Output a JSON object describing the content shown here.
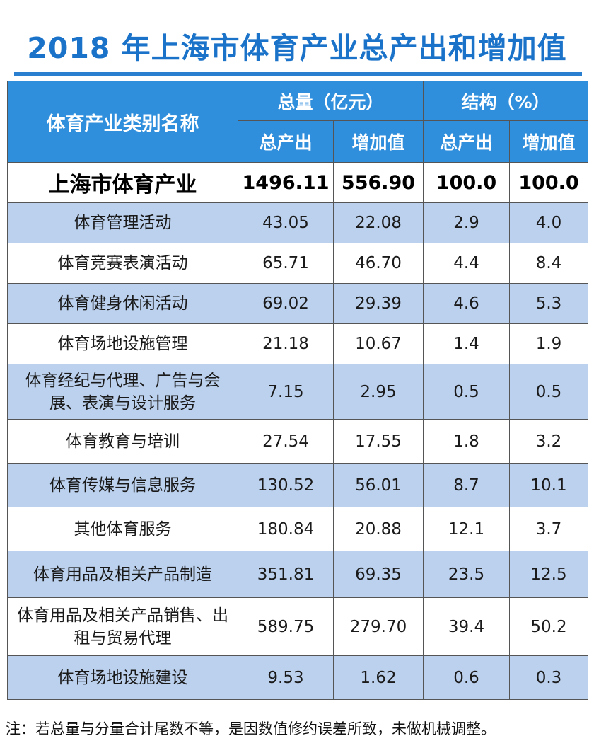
{
  "title": "2018 年上海市体育产业总产出和增加值",
  "header": {
    "category_name": "体育产业类别名称",
    "total_group": "总量（亿元）",
    "structure_group": "结构（%）",
    "sub": [
      "总产出",
      "增加值",
      "总产出",
      "增加值"
    ]
  },
  "total_row": {
    "name": "上海市体育产业",
    "output": "1496.11",
    "added_value": "556.90",
    "output_pct": "100.0",
    "added_pct": "100.0"
  },
  "rows": [
    {
      "name": "体育管理活动",
      "output": "43.05",
      "added_value": "22.08",
      "output_pct": "2.9",
      "added_pct": "4.0"
    },
    {
      "name": "体育竞赛表演活动",
      "output": "65.71",
      "added_value": "46.70",
      "output_pct": "4.4",
      "added_pct": "8.4"
    },
    {
      "name": "体育健身休闲活动",
      "output": "69.02",
      "added_value": "29.39",
      "output_pct": "4.6",
      "added_pct": "5.3"
    },
    {
      "name": "体育场地设施管理",
      "output": "21.18",
      "added_value": "10.67",
      "output_pct": "1.4",
      "added_pct": "1.9"
    },
    {
      "name": "体育经纪与代理、广告与会展、表演与设计服务",
      "output": "7.15",
      "added_value": "2.95",
      "output_pct": "0.5",
      "added_pct": "0.5"
    },
    {
      "name": "体育教育与培训",
      "output": "27.54",
      "added_value": "17.55",
      "output_pct": "1.8",
      "added_pct": "3.2"
    },
    {
      "name": "体育传媒与信息服务",
      "output": "130.52",
      "added_value": "56.01",
      "output_pct": "8.7",
      "added_pct": "10.1"
    },
    {
      "name": "其他体育服务",
      "output": "180.84",
      "added_value": "20.88",
      "output_pct": "12.1",
      "added_pct": "3.7"
    },
    {
      "name": "体育用品及相关产品制造",
      "output": "351.81",
      "added_value": "69.35",
      "output_pct": "23.5",
      "added_pct": "12.5"
    },
    {
      "name": "体育用品及相关产品销售、出租与贸易代理",
      "output": "589.75",
      "added_value": "279.70",
      "output_pct": "39.4",
      "added_pct": "50.2"
    },
    {
      "name": "体育场地设施建设",
      "output": "9.53",
      "added_value": "1.62",
      "output_pct": "0.6",
      "added_pct": "0.3"
    }
  ],
  "note": "注：若总量与分量合计尾数不等，是因数值修约误差所致，未做机械调整。",
  "colors": {
    "title": "#1a73c9",
    "header_bg": "#2f8fdc",
    "row_blue": "#bcd1ee",
    "row_white": "#ffffff"
  }
}
